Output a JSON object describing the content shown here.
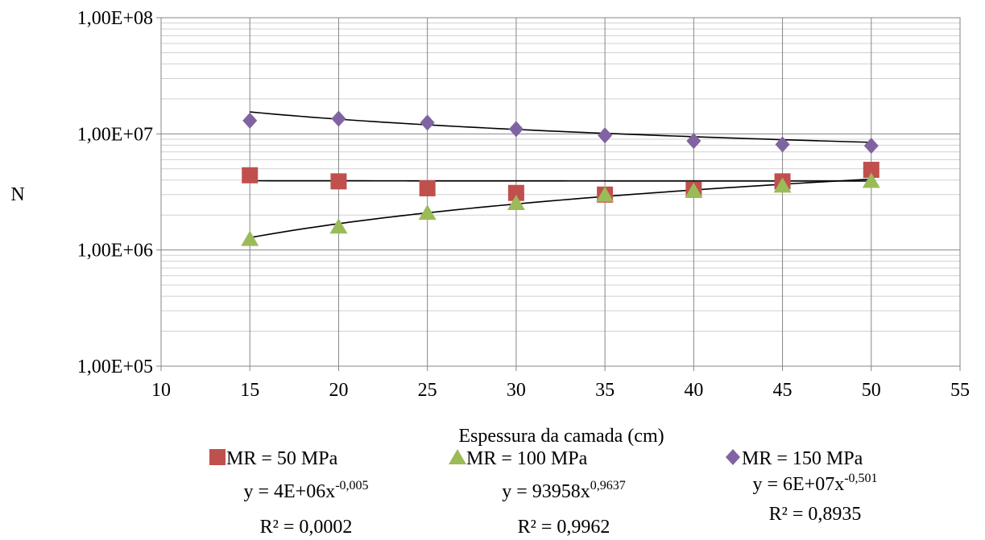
{
  "chart_data": {
    "type": "scatter",
    "title": "",
    "xlabel": "Espessura da camada (cm)",
    "ylabel": "N",
    "xlim": [
      10,
      55
    ],
    "ylim": [
      100000,
      100000000
    ],
    "yscale": "log",
    "x_ticks": [
      "10",
      "15",
      "20",
      "25",
      "30",
      "35",
      "40",
      "45",
      "50",
      "55"
    ],
    "y_ticks": [
      "1,00E+05",
      "1,00E+06",
      "1,00E+07",
      "1,00E+08"
    ],
    "grid": {
      "major": true,
      "minor_y": true
    },
    "legend": {
      "position": "bottom"
    },
    "x": [
      15,
      20,
      25,
      30,
      35,
      40,
      45,
      50
    ],
    "series": [
      {
        "name": "MR = 50 MPa",
        "marker": "square",
        "color": "#C0504D",
        "values": [
          4400000,
          3900000,
          3400000,
          3100000,
          3000000,
          3300000,
          3900000,
          4900000
        ],
        "trendline": {
          "type": "power",
          "a": 4000000,
          "b": -0.005,
          "equation": {
            "prefix": "y = 4E+06x",
            "exponent": "-0,005"
          },
          "r2": "R² = 0,0002"
        }
      },
      {
        "name": "MR = 100 MPa",
        "marker": "triangle",
        "color": "#9BBB59",
        "values": [
          1250000,
          1600000,
          2100000,
          2550000,
          3000000,
          3250000,
          3600000,
          3950000
        ],
        "trendline": {
          "type": "power",
          "a": 93958,
          "b": 0.9637,
          "equation": {
            "prefix": "y = 93958x",
            "exponent": "0,9637"
          },
          "r2": "R² = 0,9962"
        }
      },
      {
        "name": "MR = 150 MPa",
        "marker": "diamond",
        "color": "#8064A2",
        "values": [
          13000000,
          13500000,
          12500000,
          11000000,
          9700000,
          8700000,
          8100000,
          7900000
        ],
        "trendline": {
          "type": "power",
          "a": 60000000,
          "b": -0.501,
          "equation": {
            "prefix": "y = 6E+07x",
            "exponent": "-0,501"
          },
          "r2": "R² = 0,8935"
        }
      }
    ]
  }
}
